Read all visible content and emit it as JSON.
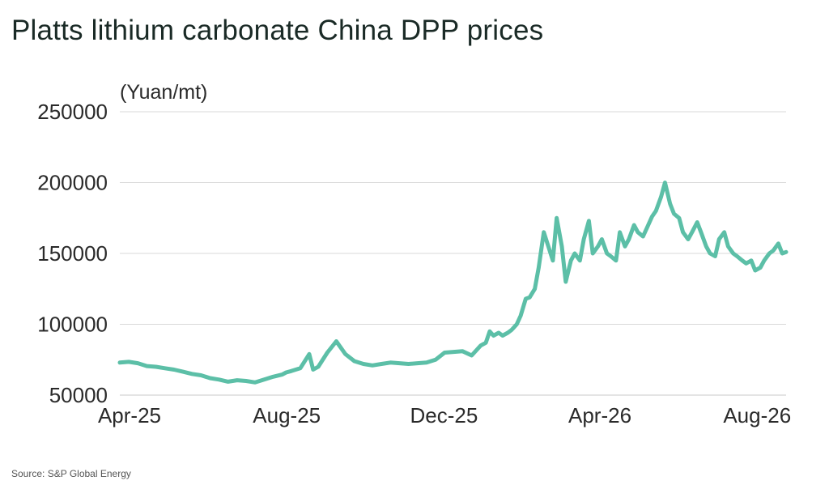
{
  "title": "Platts lithium carbonate China DPP prices",
  "unit_label": "(Yuan/mt)",
  "source": "Source: S&P Global Energy",
  "colors": {
    "line": "#5cbfa7",
    "grid": "#d9d9d9",
    "axis": "#c8c8c8"
  },
  "chart_data": {
    "type": "line",
    "title": "Platts lithium carbonate China DPP prices",
    "ylabel": "(Yuan/mt)",
    "xlabel": "",
    "ylim": [
      50000,
      250000
    ],
    "xlim": [
      "2025-04-01",
      "2026-08-31"
    ],
    "yticks": [
      50000,
      100000,
      150000,
      200000,
      250000
    ],
    "ytick_labels": [
      "50000",
      "100000",
      "150000",
      "200000",
      "250000"
    ],
    "xticks": [
      "2025-04-01",
      "2025-08-01",
      "2025-12-01",
      "2026-04-01",
      "2026-08-01"
    ],
    "xtick_labels": [
      "Apr-25",
      "Aug-25",
      "Dec-25",
      "Apr-26",
      "Aug-26"
    ],
    "grid": true,
    "legend": "none",
    "series": [
      {
        "x": [
          "2025-04-01",
          "2025-04-08",
          "2025-04-15",
          "2025-04-22",
          "2025-04-29",
          "2025-05-06",
          "2025-05-13",
          "2025-05-20",
          "2025-05-27",
          "2025-06-03",
          "2025-06-10",
          "2025-06-17",
          "2025-06-24",
          "2025-07-01",
          "2025-07-08",
          "2025-07-15",
          "2025-07-22",
          "2025-07-29",
          "2025-08-05",
          "2025-08-08",
          "2025-08-12",
          "2025-08-19",
          "2025-08-26",
          "2025-08-29",
          "2025-09-02",
          "2025-09-09",
          "2025-09-16",
          "2025-09-23",
          "2025-09-30",
          "2025-10-07",
          "2025-10-14",
          "2025-10-21",
          "2025-10-28",
          "2025-11-04",
          "2025-11-11",
          "2025-11-18",
          "2025-11-25",
          "2025-12-02",
          "2025-12-09",
          "2025-12-16",
          "2025-12-23",
          "2025-12-30",
          "2026-01-06",
          "2026-01-10",
          "2026-01-13",
          "2026-01-16",
          "2026-01-20",
          "2026-01-23",
          "2026-01-27",
          "2026-01-30",
          "2026-02-03",
          "2026-02-06",
          "2026-02-10",
          "2026-02-13",
          "2026-02-17",
          "2026-02-20",
          "2026-02-24",
          "2026-03-03",
          "2026-03-06",
          "2026-03-10",
          "2026-03-13",
          "2026-03-17",
          "2026-03-20",
          "2026-03-24",
          "2026-03-27",
          "2026-03-31",
          "2026-04-03",
          "2026-04-07",
          "2026-04-10",
          "2026-04-14",
          "2026-04-17",
          "2026-04-21",
          "2026-04-24",
          "2026-04-28",
          "2026-05-01",
          "2026-05-05",
          "2026-05-08",
          "2026-05-12",
          "2026-05-15",
          "2026-05-19",
          "2026-05-22",
          "2026-05-26",
          "2026-05-29",
          "2026-06-02",
          "2026-06-05",
          "2026-06-09",
          "2026-06-12",
          "2026-06-16",
          "2026-06-19",
          "2026-06-23",
          "2026-06-26",
          "2026-06-30",
          "2026-07-03",
          "2026-07-07",
          "2026-07-10",
          "2026-07-14",
          "2026-07-17",
          "2026-07-21",
          "2026-07-24",
          "2026-07-28",
          "2026-07-31",
          "2026-08-04",
          "2026-08-07",
          "2026-08-11",
          "2026-08-14",
          "2026-08-18",
          "2026-08-21",
          "2026-08-25",
          "2026-08-28",
          "2026-08-31"
        ],
        "y": [
          73000,
          73500,
          72500,
          70500,
          70000,
          69000,
          68000,
          66500,
          65000,
          64000,
          62000,
          61000,
          59500,
          60500,
          60000,
          59000,
          61000,
          63000,
          64500,
          66000,
          67000,
          69000,
          79000,
          68000,
          70000,
          80000,
          88000,
          79000,
          74000,
          72000,
          71000,
          72000,
          73000,
          72500,
          72000,
          72500,
          73000,
          75000,
          80000,
          80500,
          81000,
          78000,
          85000,
          87000,
          95000,
          92000,
          94000,
          92000,
          94000,
          96000,
          100000,
          106000,
          118000,
          119000,
          125000,
          140000,
          165000,
          145000,
          175000,
          155000,
          130000,
          145000,
          150000,
          145000,
          160000,
          173000,
          150000,
          155000,
          160000,
          150000,
          148000,
          145000,
          165000,
          155000,
          160000,
          170000,
          165000,
          162000,
          168000,
          176000,
          180000,
          190000,
          200000,
          185000,
          178000,
          175000,
          165000,
          160000,
          165000,
          172000,
          165000,
          155000,
          150000,
          148000,
          160000,
          165000,
          155000,
          150000,
          148000,
          145000,
          143000,
          145000,
          138000,
          140000,
          145000,
          150000,
          152000,
          157000,
          150000,
          151000
        ]
      }
    ]
  }
}
